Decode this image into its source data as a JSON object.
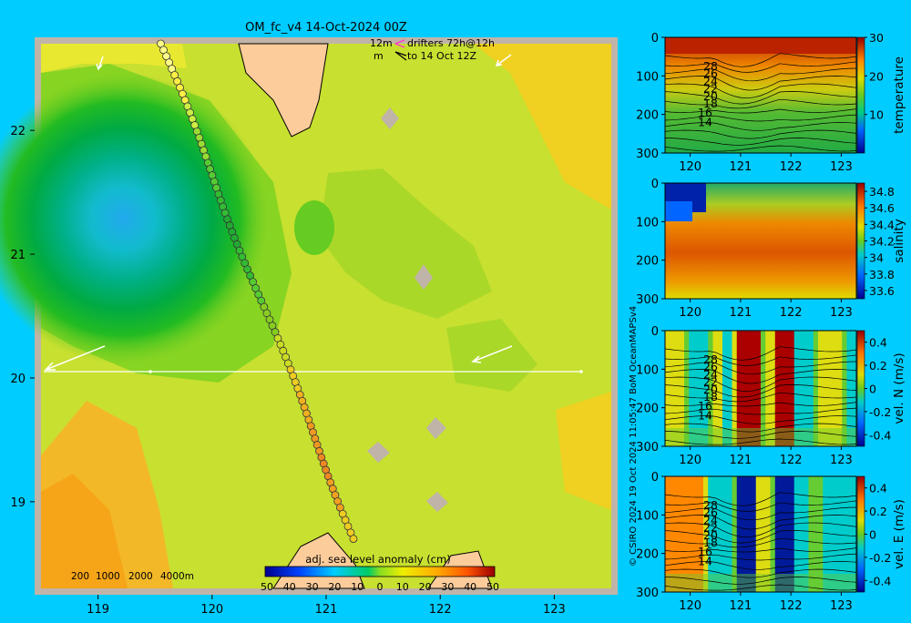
{
  "title": "OM_fc_v4  14-Oct-2024 00Z",
  "legend": {
    "line1_left": "12m",
    "line1_right": "drifters 72h@12h",
    "line2_left": "m",
    "line2_right": "to 14 Oct 12Z"
  },
  "depth_labels": [
    "200",
    "1000",
    "2000",
    "4000m"
  ],
  "credit": "© CSIRO 2024   19 Oct 2024 11:05:47 BoM OceanMAPSv4",
  "colors": {
    "background": "#00ccff",
    "land": "#fccc9b",
    "frame": "#c0b4a8",
    "drifter_pink": "#ff33cc"
  },
  "chart_data": [
    {
      "type": "heatmap",
      "name": "map",
      "title": "OM_fc_v4  14-Oct-2024 00Z",
      "xlim": [
        118.5,
        123.5
      ],
      "ylim": [
        18.3,
        22.7
      ],
      "xticks": [
        "119",
        "120",
        "121",
        "122",
        "123"
      ],
      "yticks": [
        "19",
        "20",
        "21",
        "22"
      ],
      "colorbar": {
        "label": "adj. sea level anomaly (cm)",
        "ticks": [
          "50",
          "40",
          "30",
          "20",
          "10",
          "0",
          "10",
          "20",
          "30",
          "40",
          "50"
        ],
        "range": [
          -50,
          50
        ]
      },
      "eddy_center": {
        "lon": 119.25,
        "lat": 21.25,
        "sla_cm": -25
      },
      "section": {
        "lon_start": 118.5,
        "lon_end": 123.3,
        "lat": 20.0
      },
      "drifter_track": {
        "start": {
          "lon": 119.55,
          "lat": 22.7
        },
        "end": {
          "lon": 121.25,
          "lat": 18.7
        }
      },
      "arrows": [
        {
          "lon": 119.05,
          "lat": 22.5
        },
        {
          "lon": 122.5,
          "lat": 22.5
        },
        {
          "lon": 118.85,
          "lat": 20.1
        },
        {
          "lon": 122.45,
          "lat": 20.1
        }
      ]
    },
    {
      "type": "heatmap",
      "name": "temperature section",
      "ylabel": "temperature",
      "xlim": [
        119.5,
        123.3
      ],
      "ylim": [
        300,
        0
      ],
      "xticks": [
        "120",
        "121",
        "122",
        "123"
      ],
      "yticks": [
        "0",
        "100",
        "200",
        "300"
      ],
      "cbar_ticks": [
        "30",
        "20",
        "10"
      ],
      "cbar_range": [
        0,
        30
      ],
      "contour_labels": [
        "28",
        "26",
        "24",
        "22",
        "20",
        "18",
        "16",
        "14"
      ]
    },
    {
      "type": "heatmap",
      "name": "salinity section",
      "ylabel": "salinity",
      "xlim": [
        119.5,
        123.3
      ],
      "ylim": [
        300,
        0
      ],
      "xticks": [
        "120",
        "121",
        "122",
        "123"
      ],
      "yticks": [
        "0",
        "100",
        "200",
        "300"
      ],
      "cbar_ticks": [
        "34.8",
        "34.6",
        "34.4",
        "34.2",
        "34",
        "33.8",
        "33.6"
      ],
      "cbar_range": [
        33.5,
        34.9
      ]
    },
    {
      "type": "heatmap",
      "name": "north velocity section",
      "ylabel": "vel. N (m/s)",
      "xlim": [
        119.5,
        123.3
      ],
      "ylim": [
        300,
        0
      ],
      "xticks": [
        "120",
        "121",
        "122",
        "123"
      ],
      "yticks": [
        "0",
        "100",
        "200",
        "300"
      ],
      "cbar_ticks": [
        "0.4",
        "0.2",
        "0",
        "-0.2",
        "-0.4"
      ],
      "cbar_range": [
        -0.5,
        0.5
      ],
      "contour_labels": [
        "28",
        "26",
        "24",
        "22",
        "20",
        "18",
        "16",
        "14"
      ]
    },
    {
      "type": "heatmap",
      "name": "east velocity section",
      "ylabel": "vel. E (m/s)",
      "xlim": [
        119.5,
        123.3
      ],
      "ylim": [
        300,
        0
      ],
      "xticks": [
        "120",
        "121",
        "122",
        "123"
      ],
      "yticks": [
        "0",
        "100",
        "200",
        "300"
      ],
      "cbar_ticks": [
        "0.4",
        "0.2",
        "0",
        "-0.2",
        "-0.4"
      ],
      "cbar_range": [
        -0.5,
        0.5
      ],
      "contour_labels": [
        "28",
        "26",
        "24",
        "22",
        "20",
        "18",
        "16",
        "14"
      ]
    }
  ]
}
